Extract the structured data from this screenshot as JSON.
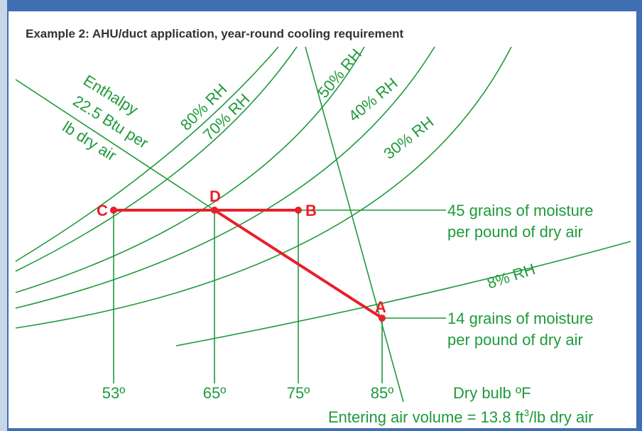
{
  "title": "Example 2: AHU/duct application, year-round cooling requirement",
  "enthalpy_label": [
    "Enthalpy",
    "22.5 Btu per",
    "lb dry air"
  ],
  "rh_labels": [
    "80% RH",
    "70% RH",
    "50% RH",
    "40% RH",
    "30% RH",
    "8% RH"
  ],
  "points": [
    "A",
    "B",
    "C",
    "D"
  ],
  "moisture_labels": {
    "upper": [
      "45 grains of moisture",
      "per pound of dry air"
    ],
    "lower": [
      "14 grains of moisture",
      "per pound of dry air"
    ]
  },
  "temperatures": [
    "53º",
    "65º",
    "75º",
    "85º"
  ],
  "axis_label": "Dry bulb ºF",
  "volume_label": {
    "text": "Entering air volume = 13.8 ft",
    "superscript": "3",
    "suffix": "/lb dry air"
  }
}
